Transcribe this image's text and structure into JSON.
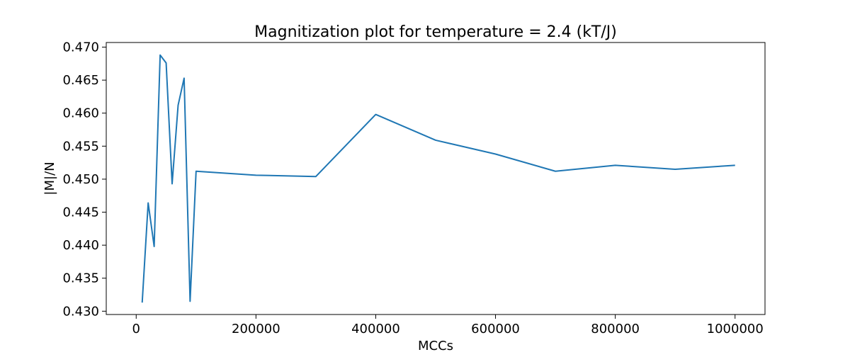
{
  "chart_data": {
    "type": "line",
    "title": "Magnitization plot for temperature =  2.4 (kT/J)",
    "xlabel": "MCCs",
    "ylabel": "|M|/N",
    "xlim": [
      -50000,
      1050000
    ],
    "ylim": [
      0.4295,
      0.4707
    ],
    "xticks": [
      0,
      200000,
      400000,
      600000,
      800000,
      1000000
    ],
    "xtick_labels": [
      "0",
      "200000",
      "400000",
      "600000",
      "800000",
      "1000000"
    ],
    "yticks": [
      0.43,
      0.435,
      0.44,
      0.445,
      0.45,
      0.455,
      0.46,
      0.465,
      0.47
    ],
    "ytick_labels": [
      "0.430",
      "0.435",
      "0.440",
      "0.445",
      "0.450",
      "0.455",
      "0.460",
      "0.465",
      "0.470"
    ],
    "grid": false,
    "series": [
      {
        "color": "#1f77b4",
        "x": [
          10000,
          20000,
          30000,
          40000,
          50000,
          60000,
          70000,
          80000,
          90000,
          100000,
          200000,
          300000,
          400000,
          500000,
          600000,
          700000,
          800000,
          900000,
          1000000
        ],
        "y": [
          0.4313,
          0.4464,
          0.4398,
          0.4688,
          0.4676,
          0.4493,
          0.4612,
          0.4653,
          0.4315,
          0.4512,
          0.4506,
          0.4504,
          0.4598,
          0.4559,
          0.4538,
          0.4512,
          0.4521,
          0.4515,
          0.4521
        ]
      }
    ]
  }
}
